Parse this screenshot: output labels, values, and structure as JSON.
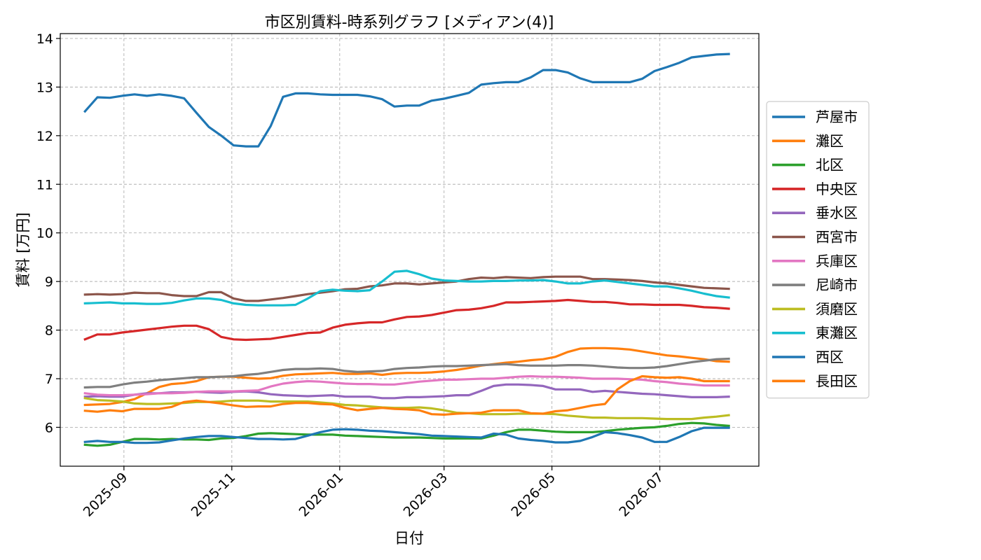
{
  "chart_data": {
    "type": "line",
    "title": "市区別賃料-時系列グラフ [メディアン(4)]",
    "xlabel": "日付",
    "ylabel": "賃料 [万円]",
    "x_type": "date",
    "xlim": [
      "2025-07-27",
      "2026-08-26"
    ],
    "ylim": [
      5.2,
      14.1
    ],
    "x_ticks": [
      "2025-09-01",
      "2025-11-01",
      "2026-01-01",
      "2026-03-01",
      "2026-05-01",
      "2026-07-01"
    ],
    "x_tick_labels": [
      "2025-09",
      "2025-11",
      "2026-01",
      "2026-03",
      "2026-05",
      "2026-07"
    ],
    "y_ticks": [
      6,
      7,
      8,
      9,
      10,
      11,
      12,
      13,
      14
    ],
    "y_tick_labels": [
      "6",
      "7",
      "8",
      "9",
      "10",
      "11",
      "12",
      "13",
      "14"
    ],
    "grid": true,
    "legend_position": "right, outside plot",
    "x": [
      "2025-08-10",
      "2025-08-17",
      "2025-08-24",
      "2025-08-31",
      "2025-09-07",
      "2025-09-14",
      "2025-09-21",
      "2025-09-28",
      "2025-10-05",
      "2025-10-12",
      "2025-10-19",
      "2025-10-26",
      "2025-11-02",
      "2025-11-09",
      "2025-11-16",
      "2025-11-23",
      "2025-11-30",
      "2025-12-07",
      "2025-12-14",
      "2025-12-21",
      "2025-12-28",
      "2026-01-04",
      "2026-01-11",
      "2026-01-18",
      "2026-01-25",
      "2026-02-01",
      "2026-02-08",
      "2026-02-15",
      "2026-02-22",
      "2026-03-01",
      "2026-03-08",
      "2026-03-15",
      "2026-03-22",
      "2026-03-29",
      "2026-04-05",
      "2026-04-12",
      "2026-04-19",
      "2026-04-26",
      "2026-05-03",
      "2026-05-10",
      "2026-05-17",
      "2026-05-24",
      "2026-05-31",
      "2026-06-07",
      "2026-06-14",
      "2026-06-21",
      "2026-06-28",
      "2026-07-05",
      "2026-07-12",
      "2026-07-19",
      "2026-07-26",
      "2026-08-02",
      "2026-08-09"
    ],
    "series": [
      {
        "name": "芦屋市",
        "color": "#1f77b4",
        "values": [
          12.5,
          12.79,
          12.78,
          12.82,
          12.85,
          12.82,
          12.85,
          12.82,
          12.77,
          12.47,
          12.18,
          12.0,
          11.8,
          11.78,
          11.78,
          12.2,
          12.8,
          12.87,
          12.87,
          12.85,
          12.84,
          12.84,
          12.84,
          12.81,
          12.75,
          12.6,
          12.62,
          12.62,
          12.72,
          12.76,
          12.82,
          12.88,
          13.05,
          13.08,
          13.1,
          13.1,
          13.2,
          13.35,
          13.35,
          13.3,
          13.18,
          13.1,
          13.1,
          13.1,
          13.1,
          13.17,
          13.33,
          13.41,
          13.5,
          13.61,
          13.64,
          13.67,
          13.68
        ]
      },
      {
        "name": "灘区",
        "color": "#ff7f0e",
        "values": [
          6.46,
          6.47,
          6.48,
          6.52,
          6.58,
          6.7,
          6.83,
          6.89,
          6.91,
          6.95,
          7.03,
          7.04,
          7.04,
          7.02,
          7.0,
          7.01,
          7.06,
          7.09,
          7.1,
          7.11,
          7.12,
          7.1,
          7.1,
          7.11,
          7.08,
          7.11,
          7.12,
          7.12,
          7.13,
          7.15,
          7.18,
          7.22,
          7.27,
          7.3,
          7.33,
          7.35,
          7.38,
          7.4,
          7.45,
          7.55,
          7.62,
          7.63,
          7.63,
          7.62,
          7.6,
          7.56,
          7.52,
          7.48,
          7.46,
          7.43,
          7.4,
          7.36,
          7.35
        ]
      },
      {
        "name": "北区",
        "color": "#2ca02c",
        "values": [
          5.64,
          5.62,
          5.64,
          5.7,
          5.76,
          5.76,
          5.75,
          5.76,
          5.75,
          5.75,
          5.74,
          5.77,
          5.78,
          5.82,
          5.87,
          5.88,
          5.87,
          5.86,
          5.85,
          5.85,
          5.85,
          5.83,
          5.82,
          5.81,
          5.8,
          5.79,
          5.79,
          5.79,
          5.78,
          5.77,
          5.77,
          5.77,
          5.77,
          5.83,
          5.9,
          5.95,
          5.95,
          5.93,
          5.91,
          5.9,
          5.9,
          5.9,
          5.92,
          5.95,
          5.97,
          5.99,
          6.0,
          6.03,
          6.07,
          6.09,
          6.08,
          6.05,
          6.03
        ]
      },
      {
        "name": "中央区",
        "color": "#d62728",
        "values": [
          7.81,
          7.91,
          7.91,
          7.95,
          7.98,
          8.01,
          8.04,
          8.07,
          8.09,
          8.09,
          8.02,
          7.86,
          7.81,
          7.8,
          7.81,
          7.82,
          7.86,
          7.9,
          7.94,
          7.95,
          8.05,
          8.11,
          8.14,
          8.16,
          8.16,
          8.22,
          8.27,
          8.28,
          8.31,
          8.36,
          8.41,
          8.42,
          8.45,
          8.5,
          8.57,
          8.57,
          8.58,
          8.59,
          8.6,
          8.62,
          8.6,
          8.58,
          8.58,
          8.56,
          8.53,
          8.53,
          8.52,
          8.52,
          8.52,
          8.5,
          8.47,
          8.46,
          8.44
        ]
      },
      {
        "name": "垂水区",
        "color": "#9467bd",
        "values": [
          6.63,
          6.64,
          6.63,
          6.63,
          6.67,
          6.7,
          6.7,
          6.72,
          6.72,
          6.73,
          6.72,
          6.71,
          6.73,
          6.74,
          6.72,
          6.68,
          6.66,
          6.65,
          6.64,
          6.65,
          6.66,
          6.63,
          6.63,
          6.63,
          6.6,
          6.6,
          6.62,
          6.62,
          6.63,
          6.64,
          6.66,
          6.66,
          6.75,
          6.85,
          6.88,
          6.88,
          6.87,
          6.85,
          6.78,
          6.78,
          6.78,
          6.73,
          6.75,
          6.73,
          6.71,
          6.69,
          6.68,
          6.66,
          6.64,
          6.62,
          6.62,
          6.62,
          6.63
        ]
      },
      {
        "name": "西宮市",
        "color": "#8c564b",
        "values": [
          8.73,
          8.74,
          8.73,
          8.74,
          8.77,
          8.76,
          8.76,
          8.72,
          8.7,
          8.7,
          8.78,
          8.78,
          8.65,
          8.6,
          8.6,
          8.63,
          8.66,
          8.7,
          8.74,
          8.77,
          8.8,
          8.84,
          8.85,
          8.9,
          8.92,
          8.96,
          8.96,
          8.94,
          8.96,
          8.98,
          9.0,
          9.05,
          9.08,
          9.07,
          9.09,
          9.08,
          9.07,
          9.09,
          9.1,
          9.1,
          9.1,
          9.05,
          9.05,
          9.04,
          9.03,
          9.01,
          8.98,
          8.96,
          8.93,
          8.9,
          8.87,
          8.86,
          8.85
        ]
      },
      {
        "name": "兵庫区",
        "color": "#e377c2",
        "values": [
          6.7,
          6.67,
          6.66,
          6.66,
          6.67,
          6.68,
          6.7,
          6.7,
          6.71,
          6.73,
          6.74,
          6.74,
          6.74,
          6.75,
          6.76,
          6.84,
          6.9,
          6.93,
          6.95,
          6.94,
          6.92,
          6.9,
          6.89,
          6.89,
          6.88,
          6.88,
          6.91,
          6.94,
          6.96,
          6.98,
          6.98,
          6.99,
          7.0,
          7.0,
          7.02,
          7.04,
          7.05,
          7.04,
          7.04,
          7.03,
          7.02,
          7.0,
          7.0,
          7.0,
          6.99,
          6.98,
          6.95,
          6.93,
          6.9,
          6.88,
          6.86,
          6.86,
          6.86
        ]
      },
      {
        "name": "尼崎市",
        "color": "#7f7f7f",
        "values": [
          6.82,
          6.83,
          6.83,
          6.88,
          6.92,
          6.94,
          6.97,
          6.99,
          7.01,
          7.03,
          7.03,
          7.04,
          7.05,
          7.08,
          7.1,
          7.14,
          7.18,
          7.2,
          7.2,
          7.21,
          7.2,
          7.16,
          7.14,
          7.15,
          7.16,
          7.2,
          7.22,
          7.23,
          7.25,
          7.26,
          7.26,
          7.27,
          7.28,
          7.29,
          7.3,
          7.28,
          7.27,
          7.27,
          7.27,
          7.28,
          7.28,
          7.27,
          7.25,
          7.23,
          7.22,
          7.22,
          7.23,
          7.26,
          7.3,
          7.34,
          7.37,
          7.4,
          7.41
        ]
      },
      {
        "name": "須磨区",
        "color": "#bcbd22",
        "values": [
          6.6,
          6.56,
          6.55,
          6.53,
          6.49,
          6.48,
          6.48,
          6.49,
          6.5,
          6.52,
          6.52,
          6.53,
          6.55,
          6.55,
          6.55,
          6.53,
          6.53,
          6.53,
          6.53,
          6.51,
          6.49,
          6.46,
          6.45,
          6.43,
          6.41,
          6.4,
          6.4,
          6.41,
          6.39,
          6.35,
          6.3,
          6.29,
          6.27,
          6.27,
          6.27,
          6.28,
          6.28,
          6.28,
          6.27,
          6.24,
          6.22,
          6.2,
          6.2,
          6.19,
          6.19,
          6.19,
          6.18,
          6.17,
          6.17,
          6.17,
          6.2,
          6.22,
          6.25
        ]
      },
      {
        "name": "東灘区",
        "color": "#17becf",
        "values": [
          8.55,
          8.56,
          8.57,
          8.55,
          8.55,
          8.54,
          8.54,
          8.56,
          8.61,
          8.65,
          8.65,
          8.62,
          8.55,
          8.52,
          8.51,
          8.51,
          8.51,
          8.52,
          8.65,
          8.8,
          8.83,
          8.81,
          8.8,
          8.82,
          9.0,
          9.2,
          9.22,
          9.15,
          9.06,
          9.02,
          9.01,
          9.0,
          9.0,
          9.01,
          9.01,
          9.02,
          9.02,
          9.03,
          9.0,
          8.96,
          8.96,
          9.0,
          9.02,
          8.99,
          8.96,
          8.93,
          8.9,
          8.9,
          8.86,
          8.81,
          8.75,
          8.7,
          8.67
        ]
      },
      {
        "name": "西区",
        "color": "#1f77b4",
        "values": [
          5.7,
          5.72,
          5.7,
          5.7,
          5.68,
          5.68,
          5.69,
          5.73,
          5.77,
          5.8,
          5.82,
          5.82,
          5.8,
          5.78,
          5.76,
          5.76,
          5.75,
          5.76,
          5.83,
          5.9,
          5.95,
          5.96,
          5.95,
          5.93,
          5.92,
          5.9,
          5.88,
          5.86,
          5.83,
          5.82,
          5.81,
          5.8,
          5.79,
          5.87,
          5.85,
          5.77,
          5.74,
          5.72,
          5.69,
          5.69,
          5.72,
          5.8,
          5.9,
          5.88,
          5.84,
          5.79,
          5.7,
          5.7,
          5.8,
          5.92,
          5.99,
          5.99,
          5.99
        ]
      },
      {
        "name": "長田区",
        "color": "#ff7f0e",
        "values": [
          6.34,
          6.32,
          6.35,
          6.33,
          6.38,
          6.38,
          6.38,
          6.42,
          6.52,
          6.55,
          6.52,
          6.49,
          6.45,
          6.42,
          6.43,
          6.43,
          6.48,
          6.5,
          6.5,
          6.48,
          6.47,
          6.4,
          6.35,
          6.38,
          6.4,
          6.38,
          6.37,
          6.35,
          6.27,
          6.26,
          6.28,
          6.29,
          6.3,
          6.35,
          6.35,
          6.35,
          6.29,
          6.28,
          6.33,
          6.35,
          6.4,
          6.45,
          6.48,
          6.78,
          6.95,
          7.05,
          7.03,
          7.02,
          7.03,
          7.0,
          6.95,
          6.95,
          6.95
        ]
      }
    ]
  }
}
